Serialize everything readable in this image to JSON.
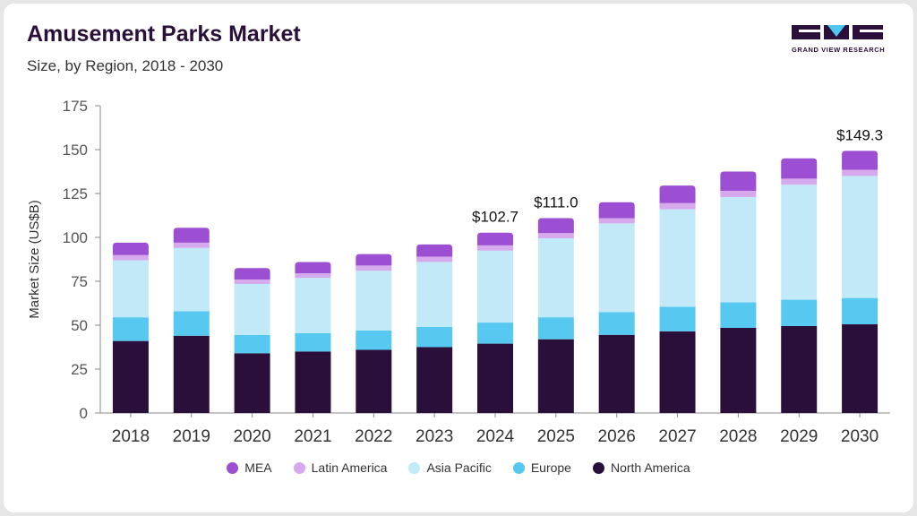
{
  "header": {
    "title": "Amusement Parks Market",
    "subtitle": "Size, by Region, 2018 - 2030"
  },
  "logo": {
    "text": "GRAND VIEW RESEARCH",
    "color": "#2a0f3a",
    "accent": "#4fc6ef"
  },
  "chart_data": {
    "type": "bar",
    "stacked": true,
    "ylabel": "Market Size (US$B)",
    "xlabel": "",
    "ylim": [
      0,
      175
    ],
    "yticks": [
      0,
      25,
      50,
      75,
      100,
      125,
      150,
      175
    ],
    "grid": false,
    "legend_position": "bottom",
    "categories": [
      "2018",
      "2019",
      "2020",
      "2021",
      "2022",
      "2023",
      "2024",
      "2025",
      "2026",
      "2027",
      "2028",
      "2029",
      "2030"
    ],
    "series": [
      {
        "name": "North America",
        "color": "#2a0f3a",
        "values": [
          41,
          44,
          34,
          35,
          36,
          37.5,
          39.5,
          42,
          44.5,
          46.5,
          48.5,
          49.5,
          50.5
        ]
      },
      {
        "name": "Europe",
        "color": "#57c9f0",
        "values": [
          13.5,
          14,
          10.5,
          10.5,
          11,
          11.5,
          12,
          12.5,
          13,
          14,
          14.5,
          15,
          15
        ]
      },
      {
        "name": "Asia Pacific",
        "color": "#c2e9f8",
        "values": [
          32.5,
          36,
          29,
          31.5,
          34,
          37,
          41,
          45,
          50.5,
          55.5,
          60,
          65.5,
          69.5
        ]
      },
      {
        "name": "Latin America",
        "color": "#d6a8ec",
        "values": [
          3,
          3,
          2.5,
          2.5,
          3,
          3,
          3,
          3,
          3,
          3.5,
          3.5,
          3.5,
          3.5
        ]
      },
      {
        "name": "MEA",
        "color": "#9d4fd3",
        "values": [
          7,
          8.5,
          6.5,
          6.5,
          6.5,
          7,
          7.2,
          8.5,
          9,
          10,
          11,
          11.5,
          10.8
        ]
      }
    ],
    "annotations": [
      {
        "category": "2024",
        "label": "$102.7",
        "value": 102.7
      },
      {
        "category": "2025",
        "label": "$111.0",
        "value": 111.0
      },
      {
        "category": "2030",
        "label": "$149.3",
        "value": 149.3
      }
    ],
    "legend_order": [
      "MEA",
      "Latin America",
      "Asia Pacific",
      "Europe",
      "North America"
    ]
  }
}
